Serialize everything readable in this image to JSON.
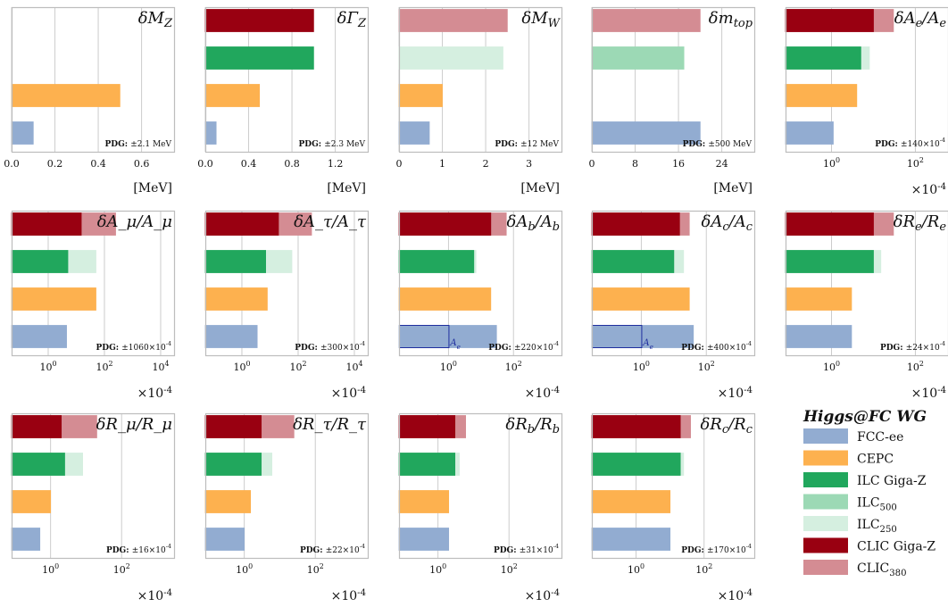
{
  "colors": {
    "FCC-ee": "#92acd1",
    "CEPC": "#fdb14f",
    "ILC Giga-Z": "#21a75d",
    "ILC500": "#9cd9b5",
    "ILC250": "#d5efe0",
    "CLIC Giga-Z": "#990011",
    "CLIC380": "#d48c93",
    "inner_box": "#1f2e9e"
  },
  "legend": {
    "title": "Higgs@FC WG",
    "entries": [
      {
        "key": "FCC-ee",
        "label": "FCC-ee",
        "sub": ""
      },
      {
        "key": "CEPC",
        "label": "CEPC",
        "sub": ""
      },
      {
        "key": "ILC Giga-Z",
        "label": "ILC Giga-Z",
        "sub": ""
      },
      {
        "key": "ILC500",
        "label": "ILC",
        "sub": "500"
      },
      {
        "key": "ILC250",
        "label": "ILC",
        "sub": "250"
      },
      {
        "key": "CLIC Giga-Z",
        "label": "CLIC Giga-Z",
        "sub": ""
      },
      {
        "key": "CLIC380",
        "label": "CLIC",
        "sub": "380"
      }
    ]
  },
  "chart_data": [
    {
      "type": "bar",
      "title": "δM_Z",
      "scale": "linear",
      "xlim": [
        0,
        0.75
      ],
      "ticks": [
        0,
        0.2,
        0.4,
        0.6
      ],
      "tick_labels": [
        "0.0",
        "0.2",
        "0.4",
        "0.6"
      ],
      "xlabel": "[MeV]",
      "pdg": "±2.1 MeV",
      "pdg_bold": "PDG:",
      "multiplier": "",
      "rows": [
        {
          "name": "CLIC",
          "bars": []
        },
        {
          "name": "ILC",
          "bars": []
        },
        {
          "name": "CEPC",
          "bars": [
            {
              "value": 0.5,
              "color": "CEPC"
            }
          ]
        },
        {
          "name": "FCC-ee",
          "bars": [
            {
              "value": 0.1,
              "color": "FCC-ee"
            }
          ]
        }
      ]
    },
    {
      "type": "bar",
      "title": "δΓ_Z",
      "scale": "linear",
      "xlim": [
        0,
        1.5
      ],
      "ticks": [
        0,
        0.4,
        0.8,
        1.2
      ],
      "tick_labels": [
        "0.0",
        "0.4",
        "0.8",
        "1.2"
      ],
      "xlabel": "[MeV]",
      "pdg": "±2.3 MeV",
      "pdg_bold": "PDG:",
      "multiplier": "",
      "rows": [
        {
          "name": "CLIC",
          "bars": [
            {
              "value": 1.0,
              "color": "CLIC Giga-Z"
            }
          ]
        },
        {
          "name": "ILC",
          "bars": [
            {
              "value": 1.0,
              "color": "ILC Giga-Z"
            }
          ]
        },
        {
          "name": "CEPC",
          "bars": [
            {
              "value": 0.5,
              "color": "CEPC"
            }
          ]
        },
        {
          "name": "FCC-ee",
          "bars": [
            {
              "value": 0.1,
              "color": "FCC-ee"
            }
          ]
        }
      ]
    },
    {
      "type": "bar",
      "title": "δM_W",
      "scale": "linear",
      "xlim": [
        0,
        3.75
      ],
      "ticks": [
        0,
        1,
        2,
        3
      ],
      "tick_labels": [
        "0",
        "1",
        "2",
        "3"
      ],
      "xlabel": "[MeV]",
      "pdg": "±12 MeV",
      "pdg_bold": "PDG:",
      "multiplier": "",
      "rows": [
        {
          "name": "CLIC",
          "bars": [
            {
              "value": 2.5,
              "color": "CLIC380"
            }
          ]
        },
        {
          "name": "ILC",
          "bars": [
            {
              "value": 2.4,
              "color": "ILC250"
            }
          ]
        },
        {
          "name": "CEPC",
          "bars": [
            {
              "value": 1.0,
              "color": "CEPC"
            }
          ]
        },
        {
          "name": "FCC-ee",
          "bars": [
            {
              "value": 0.7,
              "color": "FCC-ee"
            }
          ]
        }
      ]
    },
    {
      "type": "bar",
      "title": "δm_top",
      "scale": "linear",
      "xlim": [
        0,
        30
      ],
      "ticks": [
        0,
        8,
        16,
        24
      ],
      "tick_labels": [
        "0",
        "8",
        "16",
        "24"
      ],
      "xlabel": "[MeV]",
      "pdg": "±500 MeV",
      "pdg_bold": "PDG:",
      "multiplier": "",
      "rows": [
        {
          "name": "CLIC",
          "bars": [
            {
              "value": 20,
              "color": "CLIC380"
            }
          ]
        },
        {
          "name": "ILC",
          "bars": [
            {
              "value": 17,
              "color": "ILC500"
            }
          ]
        },
        {
          "name": "CEPC",
          "bars": []
        },
        {
          "name": "FCC-ee",
          "bars": [
            {
              "value": 20,
              "color": "FCC-ee"
            }
          ]
        }
      ]
    },
    {
      "type": "bar",
      "title": "δA_e/A_e",
      "scale": "log",
      "xlim": [
        0.08,
        600
      ],
      "ticks": [
        1,
        100
      ],
      "tick_labels": [
        "10^0",
        "10^2"
      ],
      "xlabel": "",
      "pdg": "±140×10^-4",
      "pdg_bold": "PDG:",
      "multiplier": "×10^-4",
      "rows": [
        {
          "name": "CLIC",
          "bars": [
            {
              "value": 30,
              "color": "CLIC380"
            },
            {
              "value": 10,
              "color": "CLIC Giga-Z"
            }
          ]
        },
        {
          "name": "ILC",
          "bars": [
            {
              "value": 8,
              "color": "ILC250"
            },
            {
              "value": 5,
              "color": "ILC Giga-Z"
            }
          ]
        },
        {
          "name": "CEPC",
          "bars": [
            {
              "value": 4,
              "color": "CEPC"
            }
          ]
        },
        {
          "name": "FCC-ee",
          "bars": [
            {
              "value": 1.1,
              "color": "FCC-ee"
            }
          ]
        }
      ]
    },
    {
      "type": "bar",
      "title": "δA_μ/A_μ",
      "scale": "log",
      "xlim": [
        0.05,
        30000
      ],
      "ticks": [
        1,
        100,
        10000
      ],
      "tick_labels": [
        "10^0",
        "10^2",
        "10^4"
      ],
      "xlabel": "",
      "pdg": "±1060×10^-4",
      "pdg_bold": "PDG:",
      "multiplier": "×10^-4",
      "rows": [
        {
          "name": "CLIC",
          "bars": [
            {
              "value": 250,
              "color": "CLIC380"
            },
            {
              "value": 15,
              "color": "CLIC Giga-Z"
            }
          ]
        },
        {
          "name": "ILC",
          "bars": [
            {
              "value": 50,
              "color": "ILC250"
            },
            {
              "value": 5,
              "color": "ILC Giga-Z"
            }
          ]
        },
        {
          "name": "CEPC",
          "bars": [
            {
              "value": 50,
              "color": "CEPC"
            }
          ]
        },
        {
          "name": "FCC-ee",
          "bars": [
            {
              "value": 4.5,
              "color": "FCC-ee"
            }
          ]
        }
      ]
    },
    {
      "type": "bar",
      "title": "δA_τ/A_τ",
      "scale": "log",
      "xlim": [
        0.05,
        30000
      ],
      "ticks": [
        1,
        100,
        10000
      ],
      "tick_labels": [
        "10^0",
        "10^2",
        "10^4"
      ],
      "xlabel": "",
      "pdg": "±300×10^-4",
      "pdg_bold": "PDG:",
      "multiplier": "×10^-4",
      "rows": [
        {
          "name": "CLIC",
          "bars": [
            {
              "value": 300,
              "color": "CLIC380"
            },
            {
              "value": 20,
              "color": "CLIC Giga-Z"
            }
          ]
        },
        {
          "name": "ILC",
          "bars": [
            {
              "value": 60,
              "color": "ILC250"
            },
            {
              "value": 7,
              "color": "ILC Giga-Z"
            }
          ]
        },
        {
          "name": "CEPC",
          "bars": [
            {
              "value": 8,
              "color": "CEPC"
            }
          ]
        },
        {
          "name": "FCC-ee",
          "bars": [
            {
              "value": 3.5,
              "color": "FCC-ee"
            }
          ]
        }
      ]
    },
    {
      "type": "bar",
      "title": "δA_b/A_b",
      "scale": "log",
      "xlim": [
        0.03,
        3000
      ],
      "ticks": [
        1,
        100
      ],
      "tick_labels": [
        "10^0",
        "10^2"
      ],
      "xlabel": "",
      "pdg": "±220×10^-4",
      "pdg_bold": "PDG:",
      "multiplier": "×10^-4",
      "inner": {
        "label": "A_e",
        "value": 1
      },
      "rows": [
        {
          "name": "CLIC",
          "bars": [
            {
              "value": 60,
              "color": "CLIC380"
            },
            {
              "value": 20,
              "color": "CLIC Giga-Z"
            }
          ]
        },
        {
          "name": "ILC",
          "bars": [
            {
              "value": 7,
              "color": "ILC250"
            },
            {
              "value": 6,
              "color": "ILC Giga-Z"
            }
          ]
        },
        {
          "name": "CEPC",
          "bars": [
            {
              "value": 20,
              "color": "CEPC"
            }
          ]
        },
        {
          "name": "FCC-ee",
          "bars": [
            {
              "value": 30,
              "color": "FCC-ee"
            }
          ]
        }
      ]
    },
    {
      "type": "bar",
      "title": "δA_c/A_c",
      "scale": "log",
      "xlim": [
        0.03,
        3000
      ],
      "ticks": [
        1,
        100
      ],
      "tick_labels": [
        "10^0",
        "10^2"
      ],
      "xlabel": "",
      "pdg": "±400×10^-4",
      "pdg_bold": "PDG:",
      "multiplier": "×10^-4",
      "inner": {
        "label": "A_e",
        "value": 1
      },
      "rows": [
        {
          "name": "CLIC",
          "bars": [
            {
              "value": 30,
              "color": "CLIC380"
            },
            {
              "value": 15,
              "color": "CLIC Giga-Z"
            }
          ]
        },
        {
          "name": "ILC",
          "bars": [
            {
              "value": 20,
              "color": "ILC250"
            },
            {
              "value": 10,
              "color": "ILC Giga-Z"
            }
          ]
        },
        {
          "name": "CEPC",
          "bars": [
            {
              "value": 30,
              "color": "CEPC"
            }
          ]
        },
        {
          "name": "FCC-ee",
          "bars": [
            {
              "value": 40,
              "color": "FCC-ee"
            }
          ]
        }
      ]
    },
    {
      "type": "bar",
      "title": "δR_e/R_e",
      "scale": "log",
      "xlim": [
        0.08,
        600
      ],
      "ticks": [
        1,
        100
      ],
      "tick_labels": [
        "10^0",
        "10^2"
      ],
      "xlabel": "",
      "pdg": "±24×10^-4",
      "pdg_bold": "PDG:",
      "multiplier": "×10^-4",
      "rows": [
        {
          "name": "CLIC",
          "bars": [
            {
              "value": 30,
              "color": "CLIC380"
            },
            {
              "value": 10,
              "color": "CLIC Giga-Z"
            }
          ]
        },
        {
          "name": "ILC",
          "bars": [
            {
              "value": 15,
              "color": "ILC250"
            },
            {
              "value": 10,
              "color": "ILC Giga-Z"
            }
          ]
        },
        {
          "name": "CEPC",
          "bars": [
            {
              "value": 3,
              "color": "CEPC"
            }
          ]
        },
        {
          "name": "FCC-ee",
          "bars": [
            {
              "value": 3,
              "color": "FCC-ee"
            }
          ]
        }
      ]
    },
    {
      "type": "bar",
      "title": "δR_μ/R_μ",
      "scale": "log",
      "xlim": [
        0.08,
        3000
      ],
      "ticks": [
        1,
        100
      ],
      "tick_labels": [
        "10^0",
        "10^2"
      ],
      "xlabel": "",
      "pdg": "±16×10^-4",
      "pdg_bold": "PDG:",
      "multiplier": "×10^-4",
      "rows": [
        {
          "name": "CLIC",
          "bars": [
            {
              "value": 20,
              "color": "CLIC380"
            },
            {
              "value": 2,
              "color": "CLIC Giga-Z"
            }
          ]
        },
        {
          "name": "ILC",
          "bars": [
            {
              "value": 8,
              "color": "ILC250"
            },
            {
              "value": 2.5,
              "color": "ILC Giga-Z"
            }
          ]
        },
        {
          "name": "CEPC",
          "bars": [
            {
              "value": 1,
              "color": "CEPC"
            }
          ]
        },
        {
          "name": "FCC-ee",
          "bars": [
            {
              "value": 0.5,
              "color": "FCC-ee"
            }
          ]
        }
      ]
    },
    {
      "type": "bar",
      "title": "δR_τ/R_τ",
      "scale": "log",
      "xlim": [
        0.08,
        3000
      ],
      "ticks": [
        1,
        100
      ],
      "tick_labels": [
        "10^0",
        "10^2"
      ],
      "xlabel": "",
      "pdg": "±22×10^-4",
      "pdg_bold": "PDG:",
      "multiplier": "×10^-4",
      "rows": [
        {
          "name": "CLIC",
          "bars": [
            {
              "value": 25,
              "color": "CLIC380"
            },
            {
              "value": 3,
              "color": "CLIC Giga-Z"
            }
          ]
        },
        {
          "name": "ILC",
          "bars": [
            {
              "value": 6,
              "color": "ILC250"
            },
            {
              "value": 3,
              "color": "ILC Giga-Z"
            }
          ]
        },
        {
          "name": "CEPC",
          "bars": [
            {
              "value": 1.5,
              "color": "CEPC"
            }
          ]
        },
        {
          "name": "FCC-ee",
          "bars": [
            {
              "value": 1,
              "color": "FCC-ee"
            }
          ]
        }
      ]
    },
    {
      "type": "bar",
      "title": "δR_b/R_b",
      "scale": "log",
      "xlim": [
        0.08,
        3000
      ],
      "ticks": [
        1,
        100
      ],
      "tick_labels": [
        "10^0",
        "10^2"
      ],
      "xlabel": "",
      "pdg": "±31×10^-4",
      "pdg_bold": "PDG:",
      "multiplier": "×10^-4",
      "rows": [
        {
          "name": "CLIC",
          "bars": [
            {
              "value": 6,
              "color": "CLIC380"
            },
            {
              "value": 3,
              "color": "CLIC Giga-Z"
            }
          ]
        },
        {
          "name": "ILC",
          "bars": [
            {
              "value": 4,
              "color": "ILC250"
            },
            {
              "value": 3,
              "color": "ILC Giga-Z"
            }
          ]
        },
        {
          "name": "CEPC",
          "bars": [
            {
              "value": 2,
              "color": "CEPC"
            }
          ]
        },
        {
          "name": "FCC-ee",
          "bars": [
            {
              "value": 2,
              "color": "FCC-ee"
            }
          ]
        }
      ]
    },
    {
      "type": "bar",
      "title": "δR_c/R_c",
      "scale": "log",
      "xlim": [
        0.05,
        3000
      ],
      "ticks": [
        1,
        100
      ],
      "tick_labels": [
        "10^0",
        "10^2"
      ],
      "xlabel": "",
      "pdg": "±170×10^-4",
      "pdg_bold": "PDG:",
      "multiplier": "×10^-4",
      "rows": [
        {
          "name": "CLIC",
          "bars": [
            {
              "value": 40,
              "color": "CLIC380"
            },
            {
              "value": 20,
              "color": "CLIC Giga-Z"
            }
          ]
        },
        {
          "name": "ILC",
          "bars": [
            {
              "value": 25,
              "color": "ILC250"
            },
            {
              "value": 20,
              "color": "ILC Giga-Z"
            }
          ]
        },
        {
          "name": "CEPC",
          "bars": [
            {
              "value": 10,
              "color": "CEPC"
            }
          ]
        },
        {
          "name": "FCC-ee",
          "bars": [
            {
              "value": 10,
              "color": "FCC-ee"
            }
          ]
        }
      ]
    }
  ]
}
